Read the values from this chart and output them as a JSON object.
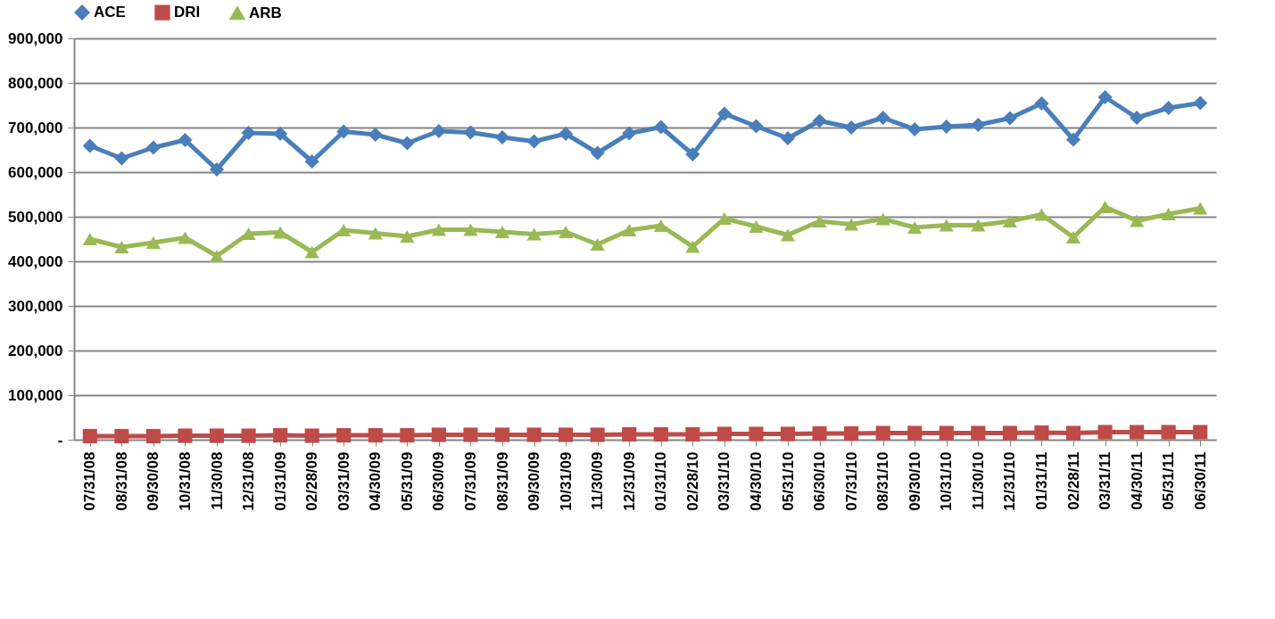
{
  "chart_data": {
    "type": "line",
    "categories": [
      "07/31/08",
      "08/31/08",
      "09/30/08",
      "10/31/08",
      "11/30/08",
      "12/31/08",
      "01/31/09",
      "02/28/09",
      "03/31/09",
      "04/30/09",
      "05/31/09",
      "06/30/09",
      "07/31/09",
      "08/31/09",
      "09/30/09",
      "10/31/09",
      "11/30/09",
      "12/31/09",
      "01/31/10",
      "02/28/10",
      "03/31/10",
      "04/30/10",
      "05/31/10",
      "06/30/10",
      "07/31/10",
      "08/31/10",
      "09/30/10",
      "10/31/10",
      "11/30/10",
      "12/31/10",
      "01/31/11",
      "02/28/11",
      "03/31/11",
      "04/30/11",
      "05/31/11",
      "06/30/11"
    ],
    "series": [
      {
        "name": "ACE",
        "color": "#4a7ebb",
        "marker": "diamond",
        "values": [
          659000,
          631000,
          655000,
          672000,
          606000,
          688000,
          686000,
          624000,
          691000,
          684000,
          665000,
          692000,
          689000,
          678000,
          669000,
          686000,
          643000,
          687000,
          701000,
          640000,
          731000,
          703000,
          676000,
          715000,
          700000,
          722000,
          696000,
          702000,
          706000,
          721000,
          754000,
          673000,
          768000,
          722000,
          744000,
          755000
        ]
      },
      {
        "name": "DRI",
        "color": "#be4b48",
        "marker": "square",
        "values": [
          8000,
          8000,
          8000,
          9000,
          9000,
          9000,
          10000,
          9000,
          10000,
          10000,
          10000,
          11000,
          11000,
          11000,
          11000,
          11000,
          11000,
          12000,
          12000,
          12000,
          13000,
          13000,
          13000,
          14000,
          14000,
          15000,
          15000,
          15000,
          15000,
          15000,
          16000,
          15000,
          17000,
          17000,
          17000,
          17000
        ]
      },
      {
        "name": "ARB",
        "color": "#98b954",
        "marker": "triangle",
        "values": [
          450000,
          432000,
          442000,
          453000,
          412000,
          462000,
          465000,
          421000,
          470000,
          463000,
          456000,
          471000,
          471000,
          466000,
          461000,
          466000,
          438000,
          470000,
          480000,
          433000,
          496000,
          478000,
          459000,
          490000,
          483000,
          495000,
          476000,
          481000,
          481000,
          490000,
          505000,
          454000,
          522000,
          491000,
          506000,
          519000
        ]
      }
    ],
    "ylim": [
      0,
      900000
    ],
    "yticks": [
      {
        "value": 0,
        "label": "-"
      },
      {
        "value": 100000,
        "label": "100,000"
      },
      {
        "value": 200000,
        "label": "200,000"
      },
      {
        "value": 300000,
        "label": "300,000"
      },
      {
        "value": 400000,
        "label": "400,000"
      },
      {
        "value": 500000,
        "label": "500,000"
      },
      {
        "value": 600000,
        "label": "600,000"
      },
      {
        "value": 700000,
        "label": "700,000"
      },
      {
        "value": 800000,
        "label": "800,000"
      },
      {
        "value": 900000,
        "label": "900,000"
      }
    ],
    "grid": "y",
    "legend": "top",
    "line_style": "solid"
  }
}
